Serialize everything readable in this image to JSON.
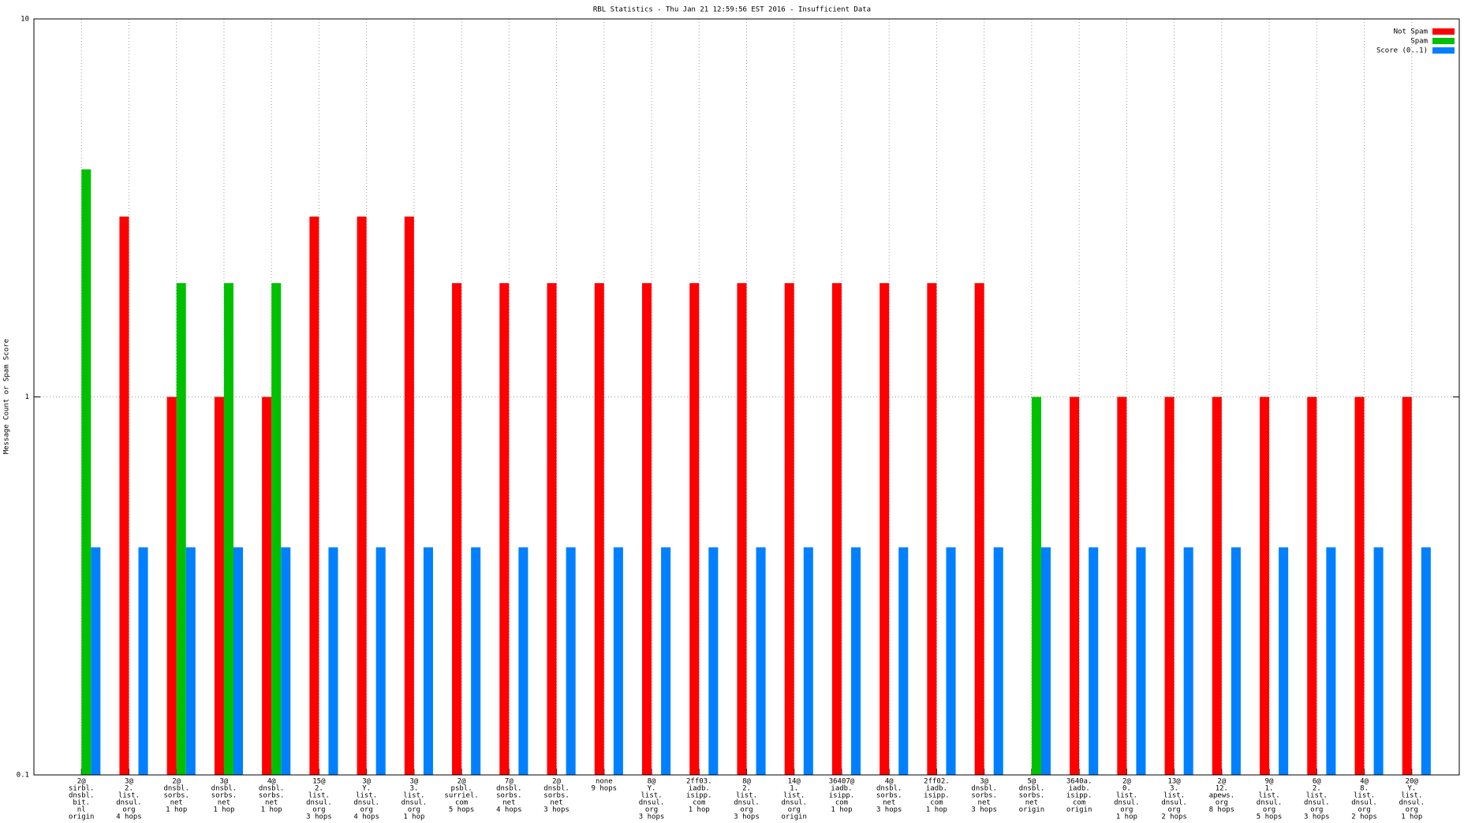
{
  "chart_data": {
    "type": "bar",
    "title": "RBL Statistics - Thu Jan 21 12:59:56 EST 2016 - Insufficient Data",
    "y_label": "Message Count or Spam Score",
    "log_scale": true,
    "grid": true,
    "legend": "top-right",
    "ylim": [
      0.1,
      10
    ],
    "yticks": [
      0.1,
      1,
      10
    ],
    "categories": [
      [
        "2@",
        "sirbl.",
        "dnsbl.",
        "bit.",
        "nl",
        "origin"
      ],
      [
        "3@",
        "2.",
        "list.",
        "dnsul.",
        "org",
        "4 hops"
      ],
      [
        "2@",
        "dnsbl.",
        "sorbs.",
        "net",
        "1 hop"
      ],
      [
        "3@",
        "dnsbl.",
        "sorbs.",
        "net",
        "1 hop"
      ],
      [
        "4@",
        "dnsbl.",
        "sorbs.",
        "net",
        "1 hop"
      ],
      [
        "15@",
        "2.",
        "list.",
        "dnsul.",
        "org",
        "3 hops"
      ],
      [
        "3@",
        "Y.",
        "list.",
        "dnsul.",
        "org",
        "4 hops"
      ],
      [
        "3@",
        "3.",
        "list.",
        "dnsul.",
        "org",
        "1 hop"
      ],
      [
        "2@",
        "psbl.",
        "surriel.",
        "com",
        "5 hops"
      ],
      [
        "7@",
        "dnsbl.",
        "sorbs.",
        "net",
        "4 hops"
      ],
      [
        "2@",
        "dnsbl.",
        "sorbs.",
        "net",
        "3 hops"
      ],
      [
        "none",
        "9 hops"
      ],
      [
        "8@",
        "Y.",
        "list.",
        "dnsul.",
        "org",
        "3 hops"
      ],
      [
        "2ff03.",
        "iadb.",
        "isipp.",
        "com",
        "1 hop"
      ],
      [
        "8@",
        "2.",
        "list.",
        "dnsul.",
        "org",
        "3 hops"
      ],
      [
        "14@",
        "1.",
        "list.",
        "dnsul.",
        "org",
        "origin"
      ],
      [
        "36407@",
        "iadb.",
        "isipp.",
        "com",
        "1 hop"
      ],
      [
        "4@",
        "dnsbl.",
        "sorbs.",
        "net",
        "3 hops"
      ],
      [
        "2ff02.",
        "iadb.",
        "isipp.",
        "com",
        "1 hop"
      ],
      [
        "3@",
        "dnsbl.",
        "sorbs.",
        "net",
        "3 hops"
      ],
      [
        "5@",
        "dnsbl.",
        "sorbs.",
        "net",
        "origin"
      ],
      [
        "3640a.",
        "iadb.",
        "isipp.",
        "com",
        "origin"
      ],
      [
        "2@",
        "0.",
        "list.",
        "dnsul.",
        "org",
        "1 hop"
      ],
      [
        "13@",
        "3.",
        "list.",
        "dnsul.",
        "org",
        "2 hops"
      ],
      [
        "2@",
        "12.",
        "apews.",
        "org",
        "8 hops"
      ],
      [
        "9@",
        "1.",
        "list.",
        "dnsul.",
        "org",
        "5 hops"
      ],
      [
        "6@",
        "2.",
        "list.",
        "dnsul.",
        "org",
        "3 hops"
      ],
      [
        "4@",
        "8.",
        "list.",
        "dnsul.",
        "org",
        "2 hops"
      ],
      [
        "20@",
        "Y.",
        "list.",
        "dnsul.",
        "org",
        "1 hop"
      ]
    ],
    "series": [
      {
        "name": "Not Spam",
        "color": "#ff0000",
        "values": [
          null,
          3,
          1,
          1,
          1,
          3,
          3,
          3,
          2,
          2,
          2,
          2,
          2,
          2,
          2,
          2,
          2,
          2,
          2,
          2,
          null,
          1,
          1,
          1,
          1,
          1,
          1,
          1,
          1
        ]
      },
      {
        "name": "Spam",
        "color": "#00c000",
        "values": [
          4,
          null,
          2,
          2,
          2,
          null,
          null,
          null,
          null,
          null,
          null,
          null,
          null,
          null,
          null,
          null,
          null,
          null,
          null,
          null,
          1,
          null,
          null,
          null,
          null,
          null,
          null,
          null,
          null
        ]
      },
      {
        "name": "Score (0..1)",
        "color": "#0080ff",
        "values": [
          0.4,
          0.4,
          0.4,
          0.4,
          0.4,
          0.4,
          0.4,
          0.4,
          0.4,
          0.4,
          0.4,
          0.4,
          0.4,
          0.4,
          0.4,
          0.4,
          0.4,
          0.4,
          0.4,
          0.4,
          0.4,
          0.4,
          0.4,
          0.4,
          0.4,
          0.4,
          0.4,
          0.4,
          0.4
        ]
      }
    ]
  }
}
